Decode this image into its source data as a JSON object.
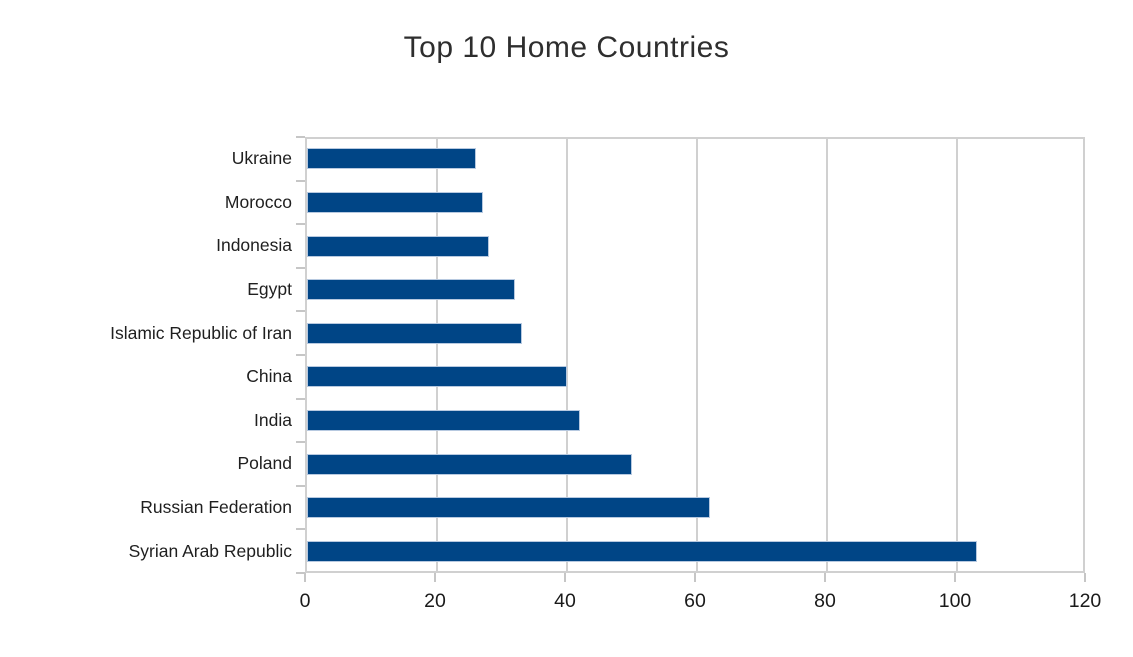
{
  "chart_data": {
    "type": "bar",
    "orientation": "horizontal",
    "title": "Top 10 Home Countries",
    "categories": [
      "Ukraine",
      "Morocco",
      "Indonesia",
      "Egypt",
      "Islamic Republic of Iran",
      "China",
      "India",
      "Poland",
      "Russian Federation",
      "Syrian Arab Republic"
    ],
    "values": [
      26,
      27,
      28,
      32,
      33,
      40,
      42,
      50,
      62,
      103
    ],
    "xlabel": "",
    "ylabel": "",
    "xlim": [
      0,
      120
    ],
    "x_ticks": [
      0,
      20,
      40,
      60,
      80,
      100,
      120
    ],
    "grid": "vertical-only",
    "legend": "none",
    "colors": {
      "bar_fill": "#004586",
      "bar_border": "#b7c9e0",
      "grid_line": "#d0d0d0",
      "tick_mark": "#c6c6c6",
      "title_text": "#2e2e2e",
      "axis_text": "#1a1a1a",
      "background": "#ffffff"
    }
  }
}
